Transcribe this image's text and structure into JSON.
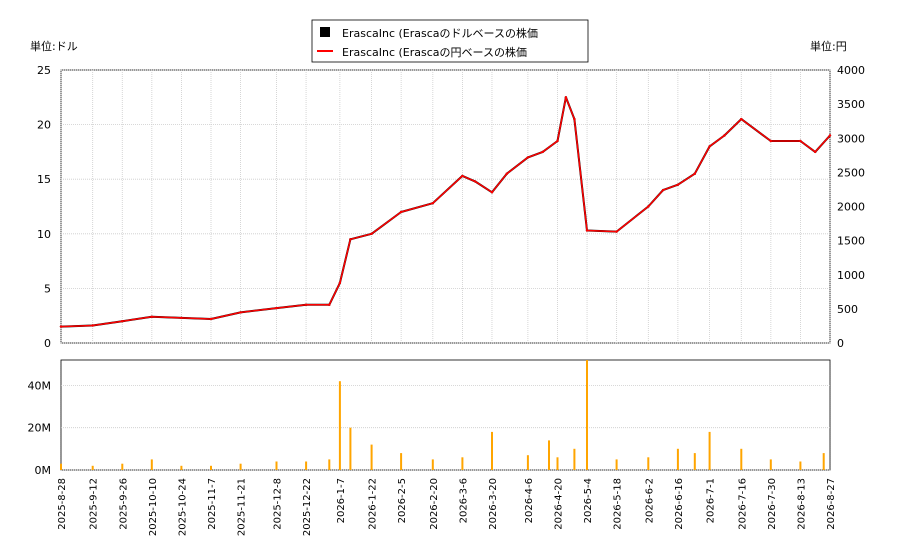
{
  "legend": {
    "items": [
      {
        "label": "ErascaInc (Erascaのドルベースの株価",
        "marker": "square",
        "color": "#000000"
      },
      {
        "label": "ErascaInc (Erascaの円ベースの株価",
        "marker": "line",
        "color": "#ff0000"
      }
    ],
    "placement": "top-center"
  },
  "units": {
    "left": "単位:ドル",
    "right": "単位:円"
  },
  "colors": {
    "price": "#000000",
    "price_yen": "#ff0000",
    "volume": "#ffa500",
    "grid": "#cccccc"
  },
  "chart_data": [
    {
      "type": "line",
      "panel": "price",
      "ylim_left": [
        0,
        25
      ],
      "left_ticks": [
        "0",
        "5",
        "10",
        "15",
        "20",
        "25"
      ],
      "ylim_right": [
        0,
        4000
      ],
      "right_ticks": [
        "0",
        "500",
        "1000",
        "1500",
        "2000",
        "2500",
        "3000",
        "3500",
        "4000"
      ],
      "x_ticks": [
        "2025-8-28",
        "2025-9-12",
        "2025-9-26",
        "2025-10-10",
        "2025-10-24",
        "2025-11-7",
        "2025-11-21",
        "2025-12-8",
        "2025-12-22",
        "2026-1-7",
        "2026-1-22",
        "2026-2-5",
        "2026-2-20",
        "2026-3-6",
        "2026-3-20",
        "2026-4-6",
        "2026-4-20",
        "2026-5-4",
        "2026-5-18",
        "2026-6-2",
        "2026-6-16",
        "2026-7-1",
        "2026-7-16",
        "2026-7-30",
        "2026-8-13",
        "2026-8-27"
      ],
      "grid": true,
      "series": [
        {
          "name": "ErascaInc (Erascaのドルベースの株価",
          "axis": "left",
          "x": [
            "2025-8-28",
            "2025-9-12",
            "2025-9-26",
            "2025-10-10",
            "2025-10-24",
            "2025-11-7",
            "2025-11-21",
            "2025-12-8",
            "2025-12-22",
            "2026-1-2",
            "2026-1-7",
            "2026-1-12",
            "2026-1-22",
            "2026-2-5",
            "2026-2-20",
            "2026-3-6",
            "2026-3-12",
            "2026-3-20",
            "2026-3-27",
            "2026-4-6",
            "2026-4-13",
            "2026-4-20",
            "2026-4-24",
            "2026-4-28",
            "2026-5-4",
            "2026-5-18",
            "2026-6-2",
            "2026-6-9",
            "2026-6-16",
            "2026-6-24",
            "2026-7-1",
            "2026-7-8",
            "2026-7-16",
            "2026-7-30",
            "2026-8-13",
            "2026-8-20",
            "2026-8-27"
          ],
          "values": [
            1.5,
            1.6,
            2.0,
            2.4,
            2.3,
            2.2,
            2.8,
            3.2,
            3.5,
            3.5,
            5.5,
            9.5,
            10.0,
            12.0,
            12.8,
            15.3,
            14.8,
            13.8,
            15.5,
            17.0,
            17.5,
            18.5,
            22.5,
            20.5,
            10.3,
            10.2,
            12.5,
            14.0,
            14.5,
            15.5,
            18.0,
            19.0,
            20.5,
            18.5,
            18.5,
            17.5,
            19.0
          ]
        },
        {
          "name": "ErascaInc (Erascaの円ベースの株価",
          "axis": "right",
          "x": [
            "2025-8-28",
            "2025-9-12",
            "2025-9-26",
            "2025-10-10",
            "2025-10-24",
            "2025-11-7",
            "2025-11-21",
            "2025-12-8",
            "2025-12-22",
            "2026-1-2",
            "2026-1-7",
            "2026-1-12",
            "2026-1-22",
            "2026-2-5",
            "2026-2-20",
            "2026-3-6",
            "2026-3-12",
            "2026-3-20",
            "2026-3-27",
            "2026-4-6",
            "2026-4-13",
            "2026-4-20",
            "2026-4-24",
            "2026-4-28",
            "2026-5-4",
            "2026-5-18",
            "2026-6-2",
            "2026-6-9",
            "2026-6-16",
            "2026-6-24",
            "2026-7-1",
            "2026-7-8",
            "2026-7-16",
            "2026-7-30",
            "2026-8-13",
            "2026-8-20",
            "2026-8-27"
          ],
          "values": [
            240,
            256,
            320,
            384,
            368,
            352,
            448,
            512,
            560,
            560,
            880,
            1520,
            1600,
            1920,
            2048,
            2448,
            2368,
            2208,
            2480,
            2720,
            2800,
            2960,
            3600,
            3280,
            1648,
            1632,
            2000,
            2240,
            2320,
            2480,
            2880,
            3040,
            3280,
            2960,
            2960,
            2800,
            3040
          ]
        }
      ]
    },
    {
      "type": "bar",
      "panel": "volume",
      "ylim": [
        0,
        52
      ],
      "unit": "M",
      "y_ticks": [
        "0M",
        "20M",
        "40M"
      ],
      "x": [
        "2025-8-28",
        "2025-9-12",
        "2025-9-26",
        "2025-10-10",
        "2025-10-24",
        "2025-11-7",
        "2025-11-21",
        "2025-12-8",
        "2025-12-22",
        "2026-1-2",
        "2026-1-7",
        "2026-1-12",
        "2026-1-22",
        "2026-2-5",
        "2026-2-20",
        "2026-3-6",
        "2026-3-20",
        "2026-4-6",
        "2026-4-16",
        "2026-4-20",
        "2026-4-28",
        "2026-5-4",
        "2026-5-18",
        "2026-6-2",
        "2026-6-16",
        "2026-6-24",
        "2026-7-1",
        "2026-7-16",
        "2026-7-30",
        "2026-8-13",
        "2026-8-24"
      ],
      "values": [
        3,
        2,
        3,
        5,
        2,
        2,
        3,
        4,
        4,
        5,
        42,
        20,
        12,
        8,
        5,
        6,
        18,
        7,
        14,
        6,
        10,
        52,
        5,
        6,
        10,
        8,
        18,
        10,
        5,
        4,
        8
      ]
    }
  ]
}
